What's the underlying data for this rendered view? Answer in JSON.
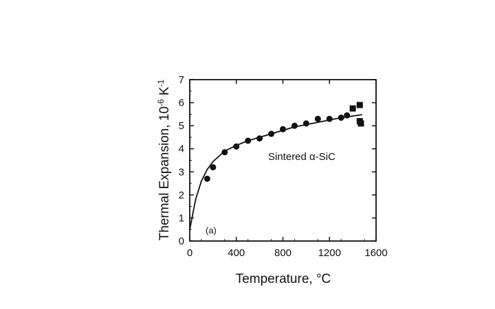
{
  "chart_data": {
    "type": "scatter",
    "title": "",
    "xlabel": "Temperature, °C",
    "ylabel_main": "Thermal Expansion, 10",
    "ylabel_exp1": "-6",
    "ylabel_unit": " K",
    "ylabel_exp2": "-1",
    "xlim": [
      0,
      1600
    ],
    "ylim": [
      0,
      7
    ],
    "x_ticks": [
      0,
      400,
      800,
      1200,
      1600
    ],
    "y_ticks": [
      0,
      1,
      2,
      3,
      4,
      5,
      6,
      7
    ],
    "grid": false,
    "annotation": "Sintered α-SiC",
    "panel_label": "(a)",
    "series": [
      {
        "marker": "circle",
        "points": [
          [
            150,
            2.7
          ],
          [
            200,
            3.2
          ],
          [
            300,
            3.85
          ],
          [
            400,
            4.1
          ],
          [
            500,
            4.35
          ],
          [
            600,
            4.45
          ],
          [
            700,
            4.65
          ],
          [
            800,
            4.85
          ],
          [
            900,
            5.0
          ],
          [
            1000,
            5.1
          ],
          [
            1100,
            5.3
          ],
          [
            1200,
            5.3
          ],
          [
            1300,
            5.35
          ],
          [
            1350,
            5.45
          ]
        ]
      },
      {
        "marker": "square",
        "points": [
          [
            1400,
            5.75
          ],
          [
            1460,
            5.9
          ],
          [
            1460,
            5.2
          ],
          [
            1470,
            5.1
          ]
        ]
      },
      {
        "marker": "line",
        "points": [
          [
            0,
            0.5
          ],
          [
            50,
            1.8
          ],
          [
            100,
            2.6
          ],
          [
            150,
            3.1
          ],
          [
            200,
            3.45
          ],
          [
            300,
            3.9
          ],
          [
            400,
            4.15
          ],
          [
            500,
            4.35
          ],
          [
            600,
            4.5
          ],
          [
            700,
            4.65
          ],
          [
            800,
            4.8
          ],
          [
            900,
            4.95
          ],
          [
            1000,
            5.05
          ],
          [
            1100,
            5.15
          ],
          [
            1200,
            5.25
          ],
          [
            1300,
            5.35
          ],
          [
            1400,
            5.42
          ],
          [
            1480,
            5.48
          ]
        ]
      }
    ]
  }
}
